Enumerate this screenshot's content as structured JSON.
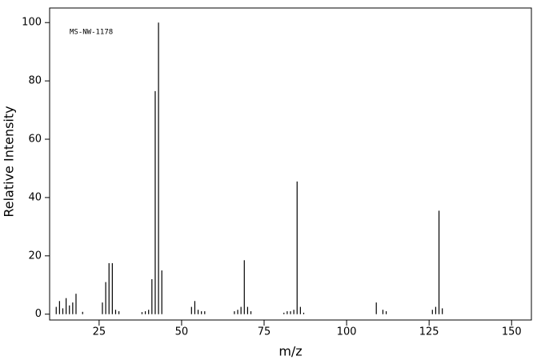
{
  "chart_data": {
    "type": "bar",
    "annotation": "MS-NW-1178",
    "x_label": "m/z",
    "y_label": "Relative Intensity",
    "x": [
      12,
      13,
      14,
      15,
      16,
      17,
      18,
      20,
      26,
      27,
      28,
      29,
      30,
      31,
      38,
      39,
      40,
      41,
      42,
      43,
      44,
      53,
      54,
      55,
      56,
      57,
      66,
      67,
      68,
      69,
      70,
      71,
      81,
      82,
      83,
      84,
      85,
      86,
      87,
      109,
      111,
      112,
      126,
      127,
      128,
      129
    ],
    "values": [
      2.5,
      4.5,
      2,
      5.5,
      3,
      4,
      7,
      0.8,
      4,
      11,
      17.5,
      17.5,
      1.5,
      1,
      0.7,
      1,
      1.5,
      12,
      76.5,
      100,
      15,
      2.5,
      4.5,
      1.5,
      1,
      1,
      1,
      1.5,
      2.5,
      18.5,
      2.5,
      1,
      0.5,
      1,
      1,
      1.5,
      45.5,
      2.5,
      0.5,
      4,
      1.5,
      1,
      1.5,
      2.5,
      35.5,
      2
    ],
    "color": "#000000",
    "xlim": [
      10,
      156
    ],
    "ylim": [
      -2,
      105
    ],
    "xticks": [
      25,
      50,
      75,
      100,
      125,
      150
    ],
    "yticks": [
      0,
      20,
      40,
      60,
      80,
      100
    ]
  }
}
